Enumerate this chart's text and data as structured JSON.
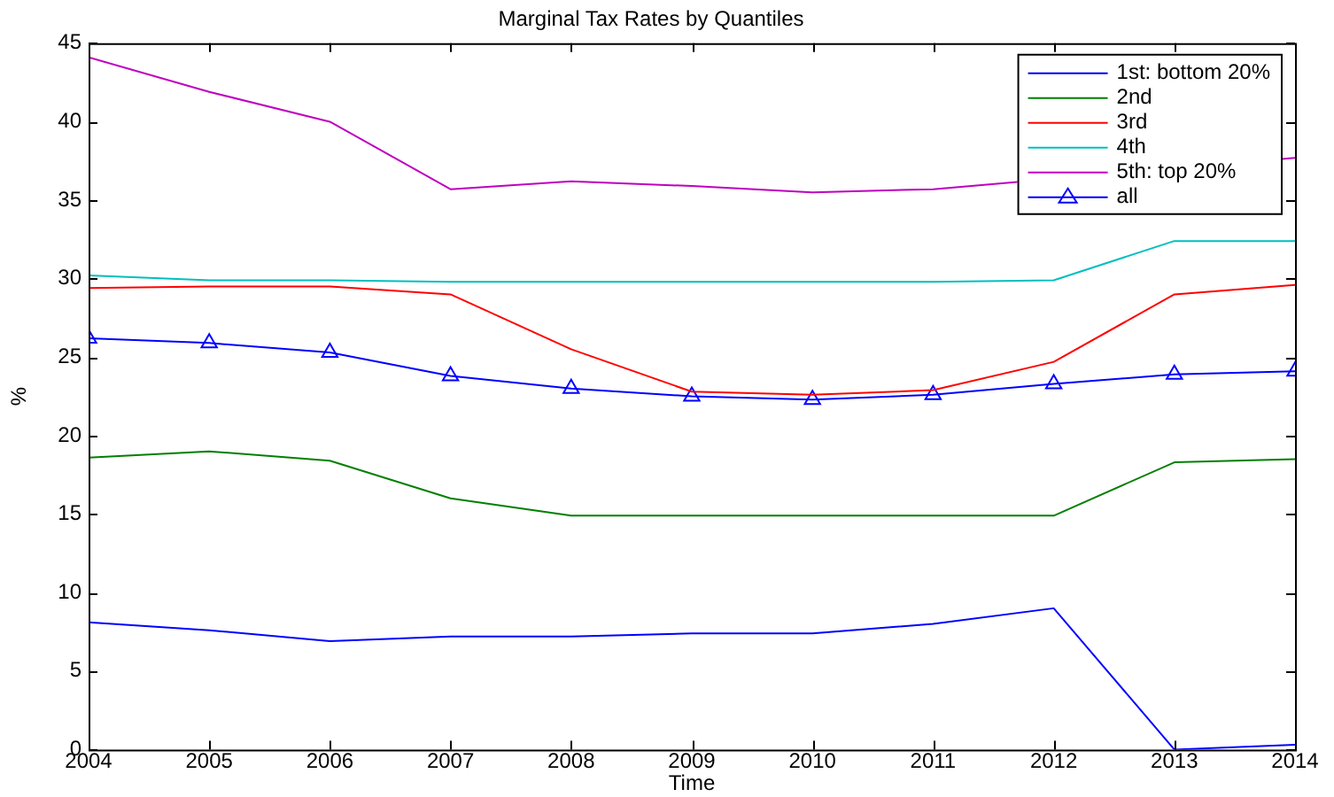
{
  "chart_data": {
    "type": "line",
    "title": "Marginal Tax Rates by Quantiles",
    "xlabel": "Time",
    "ylabel": "%",
    "x": [
      2004,
      2005,
      2006,
      2007,
      2008,
      2009,
      2010,
      2011,
      2012,
      2013,
      2014
    ],
    "xlim": [
      2004,
      2014
    ],
    "xticks": [
      2004,
      2005,
      2006,
      2007,
      2008,
      2009,
      2010,
      2011,
      2012,
      2013,
      2014
    ],
    "ylim": [
      0,
      45
    ],
    "yticks": [
      0,
      5,
      10,
      15,
      20,
      25,
      30,
      35,
      40,
      45
    ],
    "grid": false,
    "legend": "top right",
    "line_style": "solid",
    "series": [
      {
        "name": "1st: bottom 20%",
        "color": "#0000ff",
        "marker": "none",
        "values": [
          8.1,
          7.6,
          6.9,
          7.2,
          7.2,
          7.4,
          7.4,
          8.0,
          9.0,
          0.0,
          0.3
        ]
      },
      {
        "name": "2nd",
        "color": "#008000",
        "marker": "none",
        "values": [
          18.6,
          19.0,
          18.4,
          16.0,
          14.9,
          14.9,
          14.9,
          14.9,
          14.9,
          18.3,
          18.5
        ]
      },
      {
        "name": "3rd",
        "color": "#ff0000",
        "marker": "none",
        "values": [
          29.4,
          29.5,
          29.5,
          29.0,
          25.5,
          22.8,
          22.6,
          22.9,
          24.7,
          29.0,
          29.6
        ]
      },
      {
        "name": "4th",
        "color": "#00bfbf",
        "marker": "none",
        "values": [
          30.2,
          29.9,
          29.9,
          29.8,
          29.8,
          29.8,
          29.8,
          29.8,
          29.9,
          32.4,
          32.4
        ]
      },
      {
        "name": "5th: top 20%",
        "color": "#bf00bf",
        "marker": "none",
        "values": [
          44.1,
          41.9,
          40.0,
          35.7,
          36.2,
          35.9,
          35.5,
          35.7,
          null,
          null,
          37.7
        ]
      },
      {
        "name": "all",
        "color": "#0000ff",
        "marker": "triangle",
        "values": [
          26.2,
          25.9,
          25.3,
          23.8,
          23.0,
          22.5,
          22.3,
          22.6,
          23.3,
          23.9,
          24.1
        ]
      }
    ]
  }
}
